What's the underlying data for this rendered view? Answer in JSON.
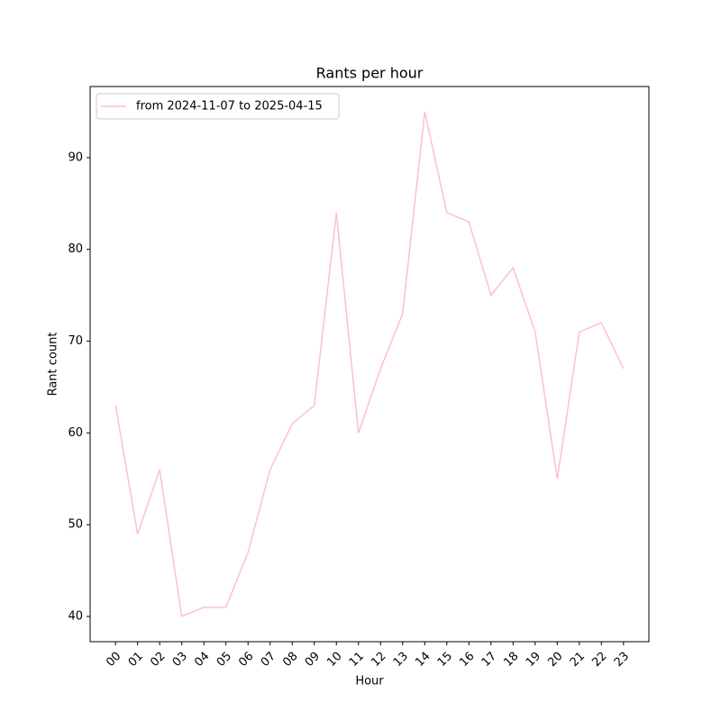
{
  "chart_data": {
    "type": "line",
    "title": "Rants per hour",
    "x_label": "Hour",
    "y_label": "Rant count",
    "categories": [
      "00",
      "01",
      "02",
      "03",
      "04",
      "05",
      "06",
      "07",
      "08",
      "09",
      "10",
      "11",
      "12",
      "13",
      "14",
      "15",
      "16",
      "17",
      "18",
      "19",
      "20",
      "21",
      "22",
      "23"
    ],
    "series": [
      {
        "name": "from 2024-11-07 to 2025-04-15",
        "color": "#ffc0cb",
        "values": [
          63,
          49,
          56,
          40,
          41,
          41,
          47,
          56,
          61,
          63,
          84,
          60,
          67,
          73,
          95,
          84,
          83,
          75,
          78,
          71,
          55,
          71,
          72,
          67
        ]
      }
    ],
    "ylim": [
      37.25,
      97.75
    ],
    "yticks": [
      40,
      50,
      60,
      70,
      80,
      90
    ],
    "grid": false,
    "legend": "upper left"
  }
}
